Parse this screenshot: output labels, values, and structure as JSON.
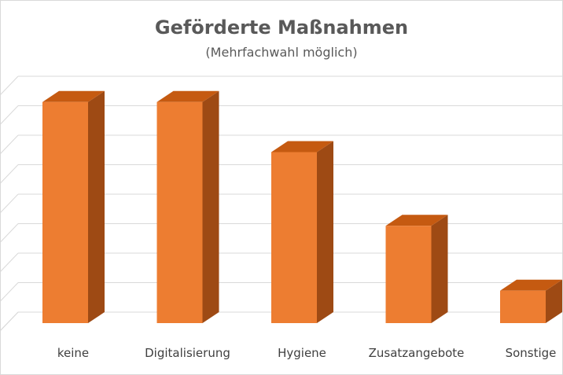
{
  "chart_data": {
    "type": "bar",
    "title": "Geförderte Maßnahmen",
    "subtitle": "(Mehrfachwahl möglich)",
    "categories": [
      "keine",
      "Digitalisierung",
      "Hygiene",
      "Zusatzangebote",
      "Sonstige"
    ],
    "values": [
      7.5,
      7.5,
      5.8,
      3.3,
      1.1
    ],
    "ylim": [
      0,
      8
    ],
    "grid": true,
    "legend": "none",
    "colors": {
      "bar_front": "#ED7D31",
      "bar_top": "#C55A11",
      "bar_side": "#9E4A14",
      "gridline": "#D9D9D9",
      "text": "#595959"
    }
  }
}
